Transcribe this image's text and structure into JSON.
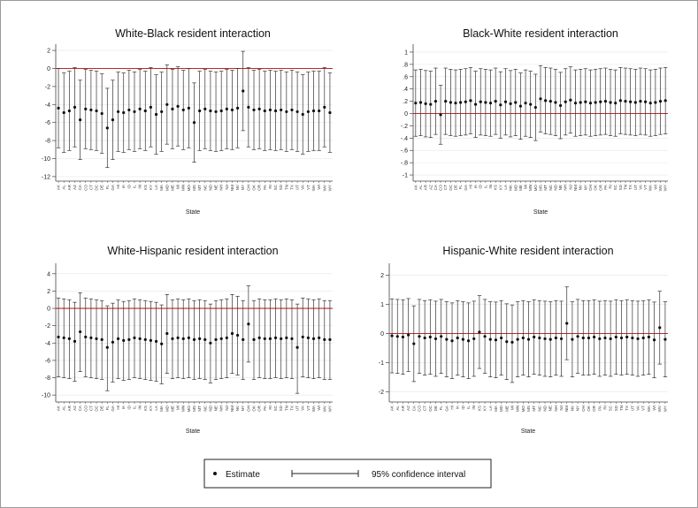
{
  "states": [
    "AK",
    "AL",
    "AR",
    "AZ",
    "CA",
    "CO",
    "CT",
    "DC",
    "DE",
    "FL",
    "GA",
    "HI",
    "IA",
    "ID",
    "IL",
    "IN",
    "KS",
    "KY",
    "LA",
    "MA",
    "MD",
    "ME",
    "MI",
    "MN",
    "MO",
    "MS",
    "MT",
    "NC",
    "ND",
    "NE",
    "NH",
    "NJ",
    "NM",
    "NV",
    "NY",
    "OH",
    "OK",
    "OR",
    "PA",
    "RI",
    "SC",
    "SD",
    "TN",
    "TX",
    "UT",
    "VA",
    "VT",
    "WA",
    "WI",
    "WV",
    "WY"
  ],
  "legend": {
    "estimate": "Estimate",
    "ci": "95% confidence interval"
  },
  "colors": {
    "zero_line": "#c0292b",
    "marker": "#111111",
    "grid": "#e6e6e6"
  },
  "chart_data": [
    {
      "type": "scatter",
      "title": "White-Black resident interaction",
      "xlabel": "State",
      "ylim": [
        -12.5,
        2.5
      ],
      "yticks": [
        2,
        0,
        -2,
        -4,
        -6,
        -8,
        -10,
        -12
      ],
      "ytick_labels": [
        "2",
        "0",
        "-2",
        "-4",
        "-6",
        "-8",
        "-10",
        "-12"
      ],
      "estimates": [
        -4.4,
        -4.9,
        -4.7,
        -4.3,
        -5.7,
        -4.5,
        -4.6,
        -4.7,
        -5.0,
        -6.6,
        -5.7,
        -4.8,
        -4.9,
        -4.6,
        -4.8,
        -4.5,
        -4.7,
        -4.3,
        -5.1,
        -4.8,
        -4.0,
        -4.5,
        -4.2,
        -4.6,
        -4.4,
        -6.0,
        -4.7,
        -4.5,
        -4.7,
        -4.8,
        -4.7,
        -4.5,
        -4.6,
        -4.4,
        -2.5,
        -4.3,
        -4.6,
        -4.5,
        -4.7,
        -4.6,
        -4.7,
        -4.6,
        -4.8,
        -4.6,
        -4.8,
        -5.1,
        -4.8,
        -4.7,
        -4.7,
        -4.3,
        -4.9
      ],
      "ci_lower": [
        -8.8,
        -9.3,
        -9.1,
        -8.7,
        -10.1,
        -8.9,
        -9.0,
        -9.1,
        -9.4,
        -11.0,
        -10.1,
        -9.2,
        -9.3,
        -9.0,
        -9.2,
        -8.9,
        -9.1,
        -8.7,
        -9.5,
        -9.2,
        -8.4,
        -8.9,
        -8.6,
        -9.0,
        -8.8,
        -10.4,
        -9.1,
        -8.9,
        -9.1,
        -9.2,
        -9.1,
        -8.9,
        -9.0,
        -8.8,
        -6.9,
        -8.7,
        -9.0,
        -8.9,
        -9.1,
        -9.0,
        -9.1,
        -9.0,
        -9.2,
        -9.0,
        -9.2,
        -9.5,
        -9.2,
        -9.1,
        -9.1,
        -8.7,
        -9.3
      ],
      "ci_upper": [
        0.0,
        -0.5,
        -0.3,
        0.1,
        -1.3,
        -0.1,
        -0.2,
        -0.3,
        -0.6,
        -2.2,
        -1.3,
        -0.4,
        -0.5,
        -0.2,
        -0.4,
        -0.1,
        -0.3,
        0.1,
        -0.7,
        -0.4,
        0.4,
        -0.1,
        0.2,
        -0.2,
        0.0,
        -1.6,
        -0.3,
        -0.1,
        -0.3,
        -0.4,
        -0.3,
        -0.1,
        -0.2,
        0.0,
        1.9,
        0.1,
        -0.2,
        -0.1,
        -0.3,
        -0.2,
        -0.3,
        -0.2,
        -0.4,
        -0.2,
        -0.4,
        -0.7,
        -0.4,
        -0.3,
        -0.3,
        0.1,
        -0.5
      ]
    },
    {
      "type": "scatter",
      "title": "Black-White resident interaction",
      "xlabel": "State",
      "ylim": [
        -1.1,
        1.1
      ],
      "yticks": [
        1,
        0.8,
        0.6,
        0.4,
        0.2,
        0,
        -0.2,
        -0.4,
        -0.6,
        -0.8,
        -1
      ],
      "ytick_labels": [
        "1",
        ".8",
        ".6",
        ".4",
        ".2",
        "0",
        "-.2",
        "-.4",
        "-.6",
        "-.8",
        "-1"
      ],
      "estimates": [
        0.17,
        0.18,
        0.16,
        0.15,
        0.2,
        -0.02,
        0.2,
        0.18,
        0.17,
        0.18,
        0.19,
        0.21,
        0.15,
        0.19,
        0.18,
        0.17,
        0.2,
        0.14,
        0.19,
        0.16,
        0.18,
        0.12,
        0.17,
        0.15,
        0.1,
        0.24,
        0.21,
        0.2,
        0.18,
        0.13,
        0.19,
        0.22,
        0.17,
        0.18,
        0.19,
        0.17,
        0.18,
        0.19,
        0.2,
        0.18,
        0.17,
        0.21,
        0.2,
        0.19,
        0.18,
        0.2,
        0.19,
        0.17,
        0.18,
        0.2,
        0.21
      ],
      "ci_lower": [
        -0.37,
        -0.36,
        -0.38,
        -0.39,
        -0.34,
        -0.5,
        -0.34,
        -0.36,
        -0.37,
        -0.36,
        -0.35,
        -0.33,
        -0.39,
        -0.35,
        -0.36,
        -0.37,
        -0.34,
        -0.4,
        -0.35,
        -0.38,
        -0.36,
        -0.42,
        -0.37,
        -0.39,
        -0.44,
        -0.3,
        -0.33,
        -0.34,
        -0.36,
        -0.41,
        -0.35,
        -0.32,
        -0.37,
        -0.36,
        -0.35,
        -0.37,
        -0.36,
        -0.35,
        -0.34,
        -0.36,
        -0.37,
        -0.33,
        -0.34,
        -0.35,
        -0.36,
        -0.34,
        -0.35,
        -0.37,
        -0.36,
        -0.34,
        -0.33
      ],
      "ci_upper": [
        0.71,
        0.72,
        0.7,
        0.69,
        0.74,
        0.46,
        0.74,
        0.72,
        0.71,
        0.72,
        0.73,
        0.75,
        0.69,
        0.73,
        0.72,
        0.71,
        0.74,
        0.68,
        0.73,
        0.7,
        0.72,
        0.66,
        0.71,
        0.69,
        0.64,
        0.78,
        0.75,
        0.74,
        0.72,
        0.67,
        0.73,
        0.76,
        0.71,
        0.72,
        0.73,
        0.71,
        0.72,
        0.73,
        0.74,
        0.72,
        0.71,
        0.75,
        0.74,
        0.73,
        0.72,
        0.74,
        0.73,
        0.71,
        0.72,
        0.74,
        0.75
      ]
    },
    {
      "type": "scatter",
      "title": "White-Hispanic resident interaction",
      "xlabel": "State",
      "ylim": [
        -10.8,
        5.0
      ],
      "yticks": [
        4,
        2,
        0,
        -2,
        -4,
        -6,
        -8,
        -10
      ],
      "ytick_labels": [
        "4",
        "2",
        "0",
        "-2",
        "-4",
        "-6",
        "-8",
        "-10"
      ],
      "estimates": [
        -3.3,
        -3.4,
        -3.5,
        -3.8,
        -2.7,
        -3.3,
        -3.4,
        -3.5,
        -3.6,
        -4.5,
        -3.9,
        -3.5,
        -3.7,
        -3.6,
        -3.4,
        -3.5,
        -3.6,
        -3.7,
        -3.8,
        -4.1,
        -2.9,
        -3.5,
        -3.4,
        -3.5,
        -3.4,
        -3.6,
        -3.5,
        -3.6,
        -4.0,
        -3.6,
        -3.5,
        -3.4,
        -2.9,
        -3.1,
        -3.6,
        -1.8,
        -3.6,
        -3.4,
        -3.5,
        -3.5,
        -3.4,
        -3.5,
        -3.4,
        -3.5,
        -4.5,
        -3.3,
        -3.4,
        -3.5,
        -3.4,
        -3.6,
        -3.6
      ],
      "ci_lower": [
        -7.9,
        -8.0,
        -8.1,
        -8.4,
        -7.3,
        -7.9,
        -8.0,
        -8.1,
        -8.2,
        -9.5,
        -8.5,
        -8.1,
        -8.3,
        -8.2,
        -8.0,
        -8.1,
        -8.2,
        -8.3,
        -8.4,
        -8.7,
        -7.5,
        -8.1,
        -8.0,
        -8.1,
        -8.0,
        -8.2,
        -8.1,
        -8.2,
        -8.6,
        -8.2,
        -8.1,
        -8.0,
        -7.5,
        -7.7,
        -8.2,
        -6.2,
        -8.2,
        -8.0,
        -8.1,
        -8.1,
        -8.0,
        -8.1,
        -8.0,
        -8.1,
        -9.8,
        -7.9,
        -8.0,
        -8.1,
        -8.0,
        -8.2,
        -8.2
      ],
      "ci_upper": [
        1.2,
        1.1,
        1.0,
        0.7,
        1.8,
        1.2,
        1.1,
        1.0,
        0.9,
        0.3,
        0.6,
        1.0,
        0.8,
        0.9,
        1.1,
        1.0,
        0.9,
        0.8,
        0.7,
        0.4,
        1.6,
        1.0,
        1.1,
        1.0,
        1.1,
        0.9,
        1.0,
        0.9,
        0.5,
        0.9,
        1.0,
        1.1,
        1.6,
        1.4,
        0.9,
        2.6,
        0.9,
        1.1,
        1.0,
        1.0,
        1.1,
        1.0,
        1.1,
        1.0,
        0.5,
        1.2,
        1.1,
        1.0,
        1.1,
        0.9,
        0.9
      ]
    },
    {
      "type": "scatter",
      "title": "Hispanic-White resident interaction",
      "xlabel": "State",
      "ylim": [
        -2.35,
        2.35
      ],
      "yticks": [
        2,
        1,
        0,
        -1,
        -2
      ],
      "ytick_labels": [
        "2",
        "1",
        "0",
        "-1",
        "-2"
      ],
      "estimates": [
        -0.08,
        -0.1,
        -0.12,
        -0.05,
        -0.35,
        -0.1,
        -0.15,
        -0.12,
        -0.18,
        -0.1,
        -0.2,
        -0.25,
        -0.15,
        -0.2,
        -0.25,
        -0.18,
        0.05,
        -0.1,
        -0.2,
        -0.22,
        -0.15,
        -0.28,
        -0.3,
        -0.2,
        -0.15,
        -0.2,
        -0.12,
        -0.15,
        -0.18,
        -0.2,
        -0.15,
        -0.18,
        0.35,
        -0.2,
        -0.1,
        -0.15,
        -0.15,
        -0.12,
        -0.18,
        -0.15,
        -0.18,
        -0.12,
        -0.15,
        -0.12,
        -0.15,
        -0.18,
        -0.15,
        -0.12,
        -0.22,
        0.2,
        -0.2
      ],
      "ci_lower": [
        -1.35,
        -1.37,
        -1.4,
        -1.3,
        -1.65,
        -1.37,
        -1.43,
        -1.4,
        -1.47,
        -1.37,
        -1.49,
        -1.55,
        -1.43,
        -1.49,
        -1.55,
        -1.47,
        -1.2,
        -1.37,
        -1.49,
        -1.52,
        -1.43,
        -1.58,
        -1.68,
        -1.49,
        -1.43,
        -1.49,
        -1.4,
        -1.43,
        -1.47,
        -1.49,
        -1.43,
        -1.47,
        -0.9,
        -1.49,
        -1.37,
        -1.43,
        -1.43,
        -1.4,
        -1.47,
        -1.43,
        -1.47,
        -1.4,
        -1.43,
        -1.4,
        -1.43,
        -1.47,
        -1.43,
        -1.4,
        -1.52,
        -1.05,
        -1.49
      ],
      "ci_upper": [
        1.19,
        1.17,
        1.16,
        1.2,
        0.95,
        1.17,
        1.13,
        1.16,
        1.11,
        1.17,
        1.09,
        1.05,
        1.13,
        1.09,
        1.05,
        1.11,
        1.3,
        1.17,
        1.09,
        1.08,
        1.13,
        1.02,
        0.98,
        1.09,
        1.13,
        1.09,
        1.16,
        1.13,
        1.11,
        1.09,
        1.13,
        1.11,
        1.6,
        1.09,
        1.17,
        1.13,
        1.13,
        1.16,
        1.11,
        1.13,
        1.11,
        1.16,
        1.13,
        1.16,
        1.13,
        1.11,
        1.13,
        1.16,
        1.08,
        1.45,
        1.09
      ]
    }
  ]
}
